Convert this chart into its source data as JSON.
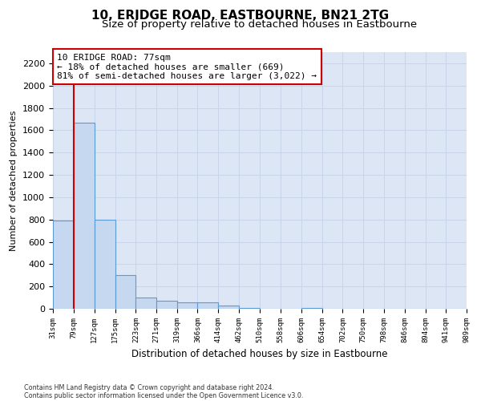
{
  "title": "10, ERIDGE ROAD, EASTBOURNE, BN21 2TG",
  "subtitle": "Size of property relative to detached houses in Eastbourne",
  "xlabel": "Distribution of detached houses by size in Eastbourne",
  "ylabel": "Number of detached properties",
  "footnote1": "Contains HM Land Registry data © Crown copyright and database right 2024.",
  "footnote2": "Contains public sector information licensed under the Open Government Licence v3.0.",
  "bar_edges": [
    31,
    79,
    127,
    175,
    223,
    271,
    319,
    366,
    414,
    462,
    510,
    558,
    606,
    654,
    702,
    750,
    798,
    846,
    894,
    941,
    989
  ],
  "bar_heights": [
    790,
    1670,
    800,
    300,
    100,
    70,
    60,
    55,
    30,
    10,
    0,
    0,
    10,
    0,
    0,
    0,
    0,
    0,
    0,
    0
  ],
  "bar_color": "#c5d8f0",
  "bar_edge_color": "#5b9bd5",
  "grid_color": "#c8d4e8",
  "property_line_x": 79,
  "property_line_color": "#cc0000",
  "annotation_line1": "10 ERIDGE ROAD: 77sqm",
  "annotation_line2": "← 18% of detached houses are smaller (669)",
  "annotation_line3": "81% of semi-detached houses are larger (3,022) →",
  "annotation_box_color": "#cc0000",
  "ylim": [
    0,
    2300
  ],
  "yticks": [
    0,
    200,
    400,
    600,
    800,
    1000,
    1200,
    1400,
    1600,
    1800,
    2000,
    2200
  ],
  "background_color": "#dce6f5",
  "title_fontsize": 11,
  "subtitle_fontsize": 9.5
}
